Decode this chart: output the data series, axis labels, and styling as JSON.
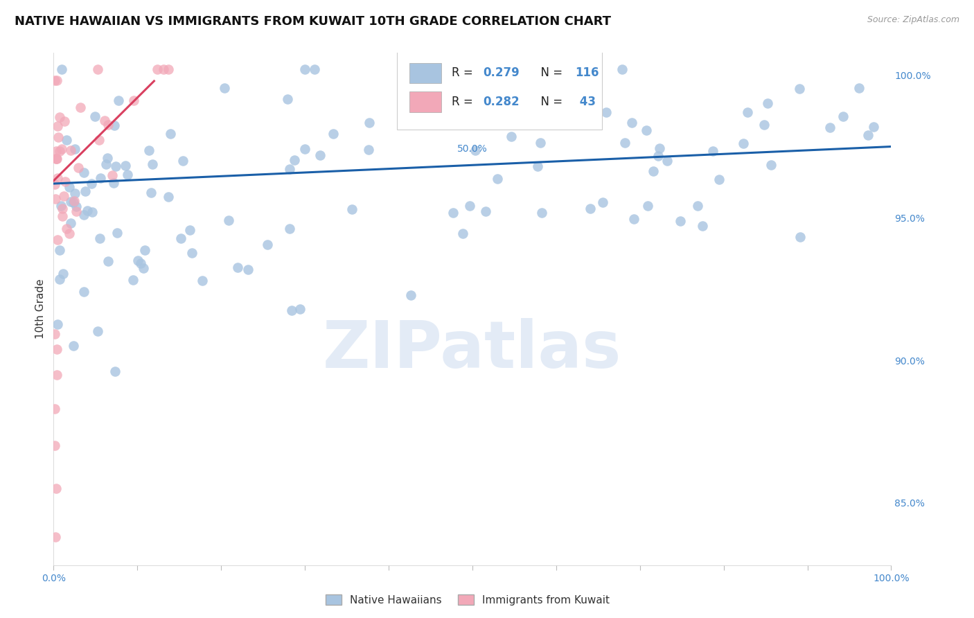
{
  "title": "NATIVE HAWAIIAN VS IMMIGRANTS FROM KUWAIT 10TH GRADE CORRELATION CHART",
  "source": "Source: ZipAtlas.com",
  "ylabel": "10th Grade",
  "xlim": [
    0.0,
    1.0
  ],
  "ylim": [
    0.828,
    1.008
  ],
  "yticks": [
    0.85,
    0.9,
    0.95,
    1.0
  ],
  "ytick_labels": [
    "85.0%",
    "90.0%",
    "95.0%",
    "100.0%"
  ],
  "blue_R": 0.279,
  "blue_N": 116,
  "pink_R": 0.282,
  "pink_N": 43,
  "blue_color": "#a8c4e0",
  "blue_line_color": "#1a5fa8",
  "pink_color": "#f2a8b8",
  "pink_line_color": "#d94060",
  "legend_label_blue": "Native Hawaiians",
  "legend_label_pink": "Immigrants from Kuwait",
  "watermark": "ZIPatlas",
  "background_color": "#ffffff",
  "grid_color": "#d8d8d8",
  "title_fontsize": 13,
  "blue_line_x0": 0.0,
  "blue_line_y0": 0.962,
  "blue_line_x1": 1.0,
  "blue_line_y1": 0.975,
  "pink_line_x0": 0.0,
  "pink_line_y0": 0.963,
  "pink_line_x1": 0.12,
  "pink_line_y1": 0.998
}
